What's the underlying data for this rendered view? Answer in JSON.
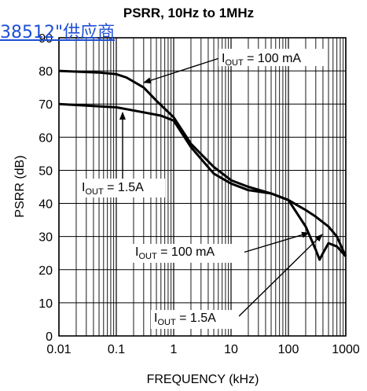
{
  "chart_data": {
    "type": "line",
    "title": "PSRR, 10Hz to 1MHz",
    "xlabel": "FREQUENCY (kHz)",
    "ylabel": "PSRR (dB)",
    "xscale": "log",
    "xlim": [
      0.01,
      1000
    ],
    "ylim": [
      0,
      90
    ],
    "xticks": [
      0.01,
      0.1,
      1,
      10,
      100,
      1000
    ],
    "xtick_labels": [
      "0.01",
      "0.1",
      "1",
      "10",
      "100",
      "1000"
    ],
    "yticks": [
      0,
      10,
      20,
      30,
      40,
      50,
      60,
      70,
      80,
      90
    ],
    "ytick_labels": [
      "0",
      "10",
      "20",
      "30",
      "40",
      "50",
      "60",
      "70",
      "80",
      "90"
    ],
    "grid": true,
    "series": [
      {
        "label_text": "OUT",
        "x": [
          0.01,
          0.05,
          0.1,
          0.15,
          0.3,
          0.5,
          1,
          2,
          5,
          10,
          20,
          50,
          100,
          200,
          300,
          500,
          700,
          1000
        ],
        "y": [
          80,
          79.5,
          79,
          78,
          75,
          71,
          66,
          58,
          51,
          47,
          45,
          43,
          41,
          38,
          36,
          33,
          30,
          24
        ]
      },
      {
        "label_text": "OUT",
        "x": [
          0.01,
          0.1,
          0.3,
          0.6,
          1,
          2,
          5,
          10,
          20,
          50,
          100,
          200,
          300,
          350,
          400,
          500,
          700,
          1000
        ],
        "y": [
          70,
          69,
          67.5,
          66.5,
          65,
          57,
          49,
          46,
          44,
          43,
          41,
          33,
          26,
          23,
          25,
          28,
          27,
          24
        ]
      }
    ],
    "annotations": [
      {
        "prefix": "I",
        "sub": "OUT",
        "suffix": " = 100 mA"
      },
      {
        "prefix": "I",
        "sub": "OUT",
        "suffix": " = 1.5A"
      },
      {
        "prefix": "I",
        "sub": "OUT",
        "suffix": " = 100 mA"
      },
      {
        "prefix": "I",
        "sub": "OUT",
        "suffix": " = 1.5A"
      }
    ]
  },
  "overlay": {
    "link_text": "38512\"供应商"
  }
}
